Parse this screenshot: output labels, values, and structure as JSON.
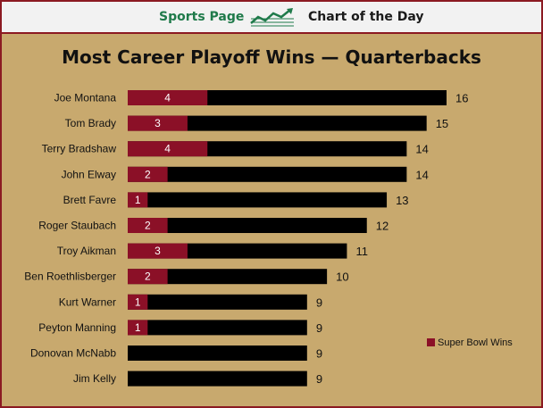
{
  "header": {
    "left_label": "Sports Page",
    "right_label": "Chart of the Day",
    "icon": "trend-line-chart-icon"
  },
  "colors": {
    "background": "#c8a96e",
    "border": "#8b1a22",
    "header_bg": "#f2f2f2",
    "header_green": "#1f7a4a",
    "super_bowl": "#8b1027",
    "playoff": "#000000"
  },
  "chart_data": {
    "type": "bar",
    "orientation": "horizontal",
    "stacked": true,
    "title": "Most Career Playoff Wins — Quarterbacks",
    "categories": [
      "Joe Montana",
      "Tom Brady",
      "Terry Bradshaw",
      "John Elway",
      "Brett Favre",
      "Roger Staubach",
      "Troy Aikman",
      "Ben Roethlisberger",
      "Kurt Warner",
      "Peyton Manning",
      "Donovan McNabb",
      "Jim Kelly"
    ],
    "totals": [
      16,
      15,
      14,
      14,
      13,
      12,
      11,
      10,
      9,
      9,
      9,
      9
    ],
    "series": [
      {
        "name": "Super Bowl Wins",
        "values": [
          4,
          3,
          4,
          2,
          1,
          2,
          3,
          2,
          1,
          1,
          0,
          0
        ]
      }
    ],
    "xlim": [
      0,
      16
    ],
    "grid": false,
    "legend_position": "right"
  }
}
